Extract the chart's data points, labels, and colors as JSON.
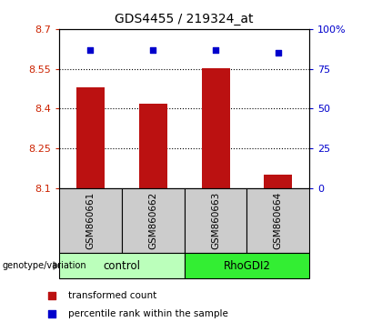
{
  "title": "GDS4455 / 219324_at",
  "samples": [
    "GSM860661",
    "GSM860662",
    "GSM860663",
    "GSM860664"
  ],
  "bar_values": [
    8.48,
    8.42,
    8.553,
    8.15
  ],
  "bar_base": 8.1,
  "bar_color": "#bb1111",
  "blue_marker_values": [
    87,
    87,
    87,
    85
  ],
  "ylim_left": [
    8.1,
    8.7
  ],
  "ylim_right": [
    0,
    100
  ],
  "yticks_left": [
    8.1,
    8.25,
    8.4,
    8.55,
    8.7
  ],
  "yticks_right": [
    0,
    25,
    50,
    75,
    100
  ],
  "ytick_labels_left": [
    "8.1",
    "8.25",
    "8.4",
    "8.55",
    "8.7"
  ],
  "ytick_labels_right": [
    "0",
    "25",
    "50",
    "75",
    "100%"
  ],
  "hlines": [
    8.25,
    8.4,
    8.55
  ],
  "groups": [
    {
      "label": "control",
      "samples": [
        0,
        1
      ],
      "color": "#bbffbb"
    },
    {
      "label": "RhoGDI2",
      "samples": [
        2,
        3
      ],
      "color": "#33ee33"
    }
  ],
  "genotype_label": "genotype/variation",
  "legend_items": [
    {
      "color": "#bb1111",
      "label": "transformed count"
    },
    {
      "color": "#0000cc",
      "label": "percentile rank within the sample"
    }
  ],
  "left_color": "#cc2200",
  "right_color": "#0000cc",
  "bar_width": 0.45,
  "sample_box_color": "#cccccc"
}
